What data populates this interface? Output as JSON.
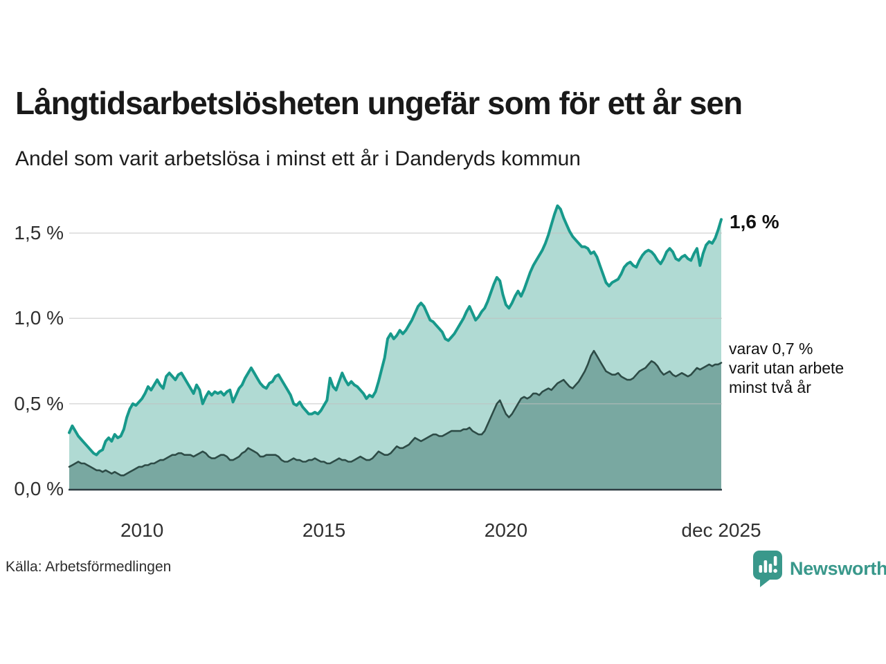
{
  "header": {
    "title": "Långtidsarbetslösheten ungefär som för ett år sen",
    "subtitle": "Andel som varit arbetslösa i minst ett år i Danderyds kommun"
  },
  "annotations": {
    "latest_total": "1,6 %",
    "secondary_line1": "varav 0,7 %",
    "secondary_line2": "varit utan arbete",
    "secondary_line3": "minst två år"
  },
  "footer": {
    "source": "Källa: Arbetsförmedlingen",
    "logo_text": "Newsworthy"
  },
  "colors": {
    "series1_line": "#17998b",
    "series1_fill": "#b0dad3",
    "series2_line": "#2d4b46",
    "series2_fill": "#79a8a1",
    "gridline": "#bfbfbf",
    "axis": "#2e3c42",
    "logo_teal": "#39988b",
    "text_dark": "#191919"
  },
  "chart_data": {
    "type": "area",
    "title": "Långtidsarbetslösheten ungefär som för ett år sen",
    "subtitle": "Andel som varit arbetslösa i minst ett år i Danderyds kommun",
    "unit": "%",
    "x_start_year": 2008.0,
    "x_step_years": 0.0833333,
    "ylim": [
      0,
      1.75
    ],
    "grid": "horizontal",
    "legend_position": "line-end annotations",
    "yticks": [
      {
        "value": 1.5,
        "label": "1,5 %"
      },
      {
        "value": 1.0,
        "label": "1,0 %"
      },
      {
        "value": 0.5,
        "label": "0,5 %"
      },
      {
        "value": 0.0,
        "label": "0,0 %"
      }
    ],
    "xticks": [
      {
        "t": 2010.0,
        "label": "2010"
      },
      {
        "t": 2015.0,
        "label": "2015"
      },
      {
        "t": 2020.0,
        "label": "2020"
      },
      {
        "t": 2025.917,
        "label": "dec 2025"
      }
    ],
    "series": [
      {
        "name": "Andel arbetslösa minst ett år",
        "end_label": "1,6 %",
        "values": [
          0.33,
          0.37,
          0.34,
          0.31,
          0.29,
          0.27,
          0.25,
          0.23,
          0.21,
          0.2,
          0.22,
          0.23,
          0.28,
          0.3,
          0.28,
          0.32,
          0.3,
          0.31,
          0.35,
          0.42,
          0.47,
          0.5,
          0.49,
          0.51,
          0.53,
          0.56,
          0.6,
          0.58,
          0.61,
          0.64,
          0.61,
          0.59,
          0.66,
          0.68,
          0.66,
          0.64,
          0.67,
          0.68,
          0.65,
          0.62,
          0.59,
          0.56,
          0.61,
          0.58,
          0.5,
          0.54,
          0.57,
          0.55,
          0.57,
          0.56,
          0.57,
          0.55,
          0.57,
          0.58,
          0.51,
          0.55,
          0.59,
          0.61,
          0.65,
          0.68,
          0.71,
          0.68,
          0.65,
          0.62,
          0.6,
          0.59,
          0.62,
          0.63,
          0.66,
          0.67,
          0.64,
          0.61,
          0.58,
          0.55,
          0.5,
          0.49,
          0.51,
          0.48,
          0.46,
          0.44,
          0.44,
          0.45,
          0.44,
          0.46,
          0.49,
          0.52,
          0.65,
          0.6,
          0.58,
          0.63,
          0.68,
          0.64,
          0.61,
          0.63,
          0.61,
          0.6,
          0.58,
          0.56,
          0.53,
          0.55,
          0.54,
          0.57,
          0.63,
          0.7,
          0.77,
          0.88,
          0.91,
          0.88,
          0.9,
          0.93,
          0.91,
          0.93,
          0.96,
          0.99,
          1.03,
          1.07,
          1.09,
          1.07,
          1.03,
          0.99,
          0.98,
          0.96,
          0.94,
          0.92,
          0.88,
          0.87,
          0.89,
          0.91,
          0.94,
          0.97,
          1.0,
          1.04,
          1.07,
          1.03,
          0.99,
          1.01,
          1.04,
          1.06,
          1.1,
          1.15,
          1.2,
          1.24,
          1.22,
          1.14,
          1.08,
          1.06,
          1.09,
          1.13,
          1.16,
          1.13,
          1.17,
          1.22,
          1.27,
          1.31,
          1.34,
          1.37,
          1.4,
          1.44,
          1.49,
          1.55,
          1.61,
          1.66,
          1.64,
          1.59,
          1.55,
          1.51,
          1.48,
          1.46,
          1.44,
          1.42,
          1.42,
          1.41,
          1.38,
          1.39,
          1.36,
          1.31,
          1.26,
          1.21,
          1.19,
          1.21,
          1.22,
          1.23,
          1.26,
          1.3,
          1.32,
          1.33,
          1.31,
          1.3,
          1.34,
          1.37,
          1.39,
          1.4,
          1.39,
          1.37,
          1.34,
          1.32,
          1.35,
          1.39,
          1.41,
          1.39,
          1.35,
          1.34,
          1.36,
          1.37,
          1.35,
          1.34,
          1.38,
          1.41,
          1.31,
          1.38,
          1.43,
          1.45,
          1.44,
          1.47,
          1.52,
          1.58
        ]
      },
      {
        "name": "Varav utan arbete minst två år",
        "end_label": "varav 0,7 % varit utan arbete minst två år",
        "values": [
          0.13,
          0.14,
          0.15,
          0.16,
          0.15,
          0.15,
          0.14,
          0.13,
          0.12,
          0.11,
          0.11,
          0.1,
          0.11,
          0.1,
          0.09,
          0.1,
          0.09,
          0.08,
          0.08,
          0.09,
          0.1,
          0.11,
          0.12,
          0.13,
          0.13,
          0.14,
          0.14,
          0.15,
          0.15,
          0.16,
          0.17,
          0.17,
          0.18,
          0.19,
          0.2,
          0.2,
          0.21,
          0.21,
          0.2,
          0.2,
          0.2,
          0.19,
          0.2,
          0.21,
          0.22,
          0.21,
          0.19,
          0.18,
          0.18,
          0.19,
          0.2,
          0.2,
          0.19,
          0.17,
          0.17,
          0.18,
          0.19,
          0.21,
          0.22,
          0.24,
          0.23,
          0.22,
          0.21,
          0.19,
          0.19,
          0.2,
          0.2,
          0.2,
          0.2,
          0.19,
          0.17,
          0.16,
          0.16,
          0.17,
          0.18,
          0.17,
          0.17,
          0.16,
          0.16,
          0.17,
          0.17,
          0.18,
          0.17,
          0.16,
          0.16,
          0.15,
          0.15,
          0.16,
          0.17,
          0.18,
          0.17,
          0.17,
          0.16,
          0.16,
          0.17,
          0.18,
          0.19,
          0.18,
          0.17,
          0.17,
          0.18,
          0.2,
          0.22,
          0.21,
          0.2,
          0.2,
          0.21,
          0.23,
          0.25,
          0.24,
          0.24,
          0.25,
          0.26,
          0.28,
          0.3,
          0.29,
          0.28,
          0.29,
          0.3,
          0.31,
          0.32,
          0.32,
          0.31,
          0.31,
          0.32,
          0.33,
          0.34,
          0.34,
          0.34,
          0.34,
          0.35,
          0.35,
          0.36,
          0.34,
          0.33,
          0.32,
          0.32,
          0.34,
          0.38,
          0.42,
          0.46,
          0.5,
          0.52,
          0.48,
          0.44,
          0.42,
          0.44,
          0.47,
          0.5,
          0.53,
          0.54,
          0.53,
          0.54,
          0.56,
          0.56,
          0.55,
          0.57,
          0.58,
          0.59,
          0.58,
          0.6,
          0.62,
          0.63,
          0.64,
          0.62,
          0.6,
          0.59,
          0.61,
          0.63,
          0.66,
          0.69,
          0.73,
          0.78,
          0.81,
          0.78,
          0.75,
          0.72,
          0.69,
          0.68,
          0.67,
          0.67,
          0.68,
          0.66,
          0.65,
          0.64,
          0.64,
          0.65,
          0.67,
          0.69,
          0.7,
          0.71,
          0.73,
          0.75,
          0.74,
          0.72,
          0.69,
          0.67,
          0.68,
          0.69,
          0.67,
          0.66,
          0.67,
          0.68,
          0.67,
          0.66,
          0.67,
          0.69,
          0.71,
          0.7,
          0.71,
          0.72,
          0.73,
          0.72,
          0.73,
          0.73,
          0.74
        ]
      }
    ]
  }
}
